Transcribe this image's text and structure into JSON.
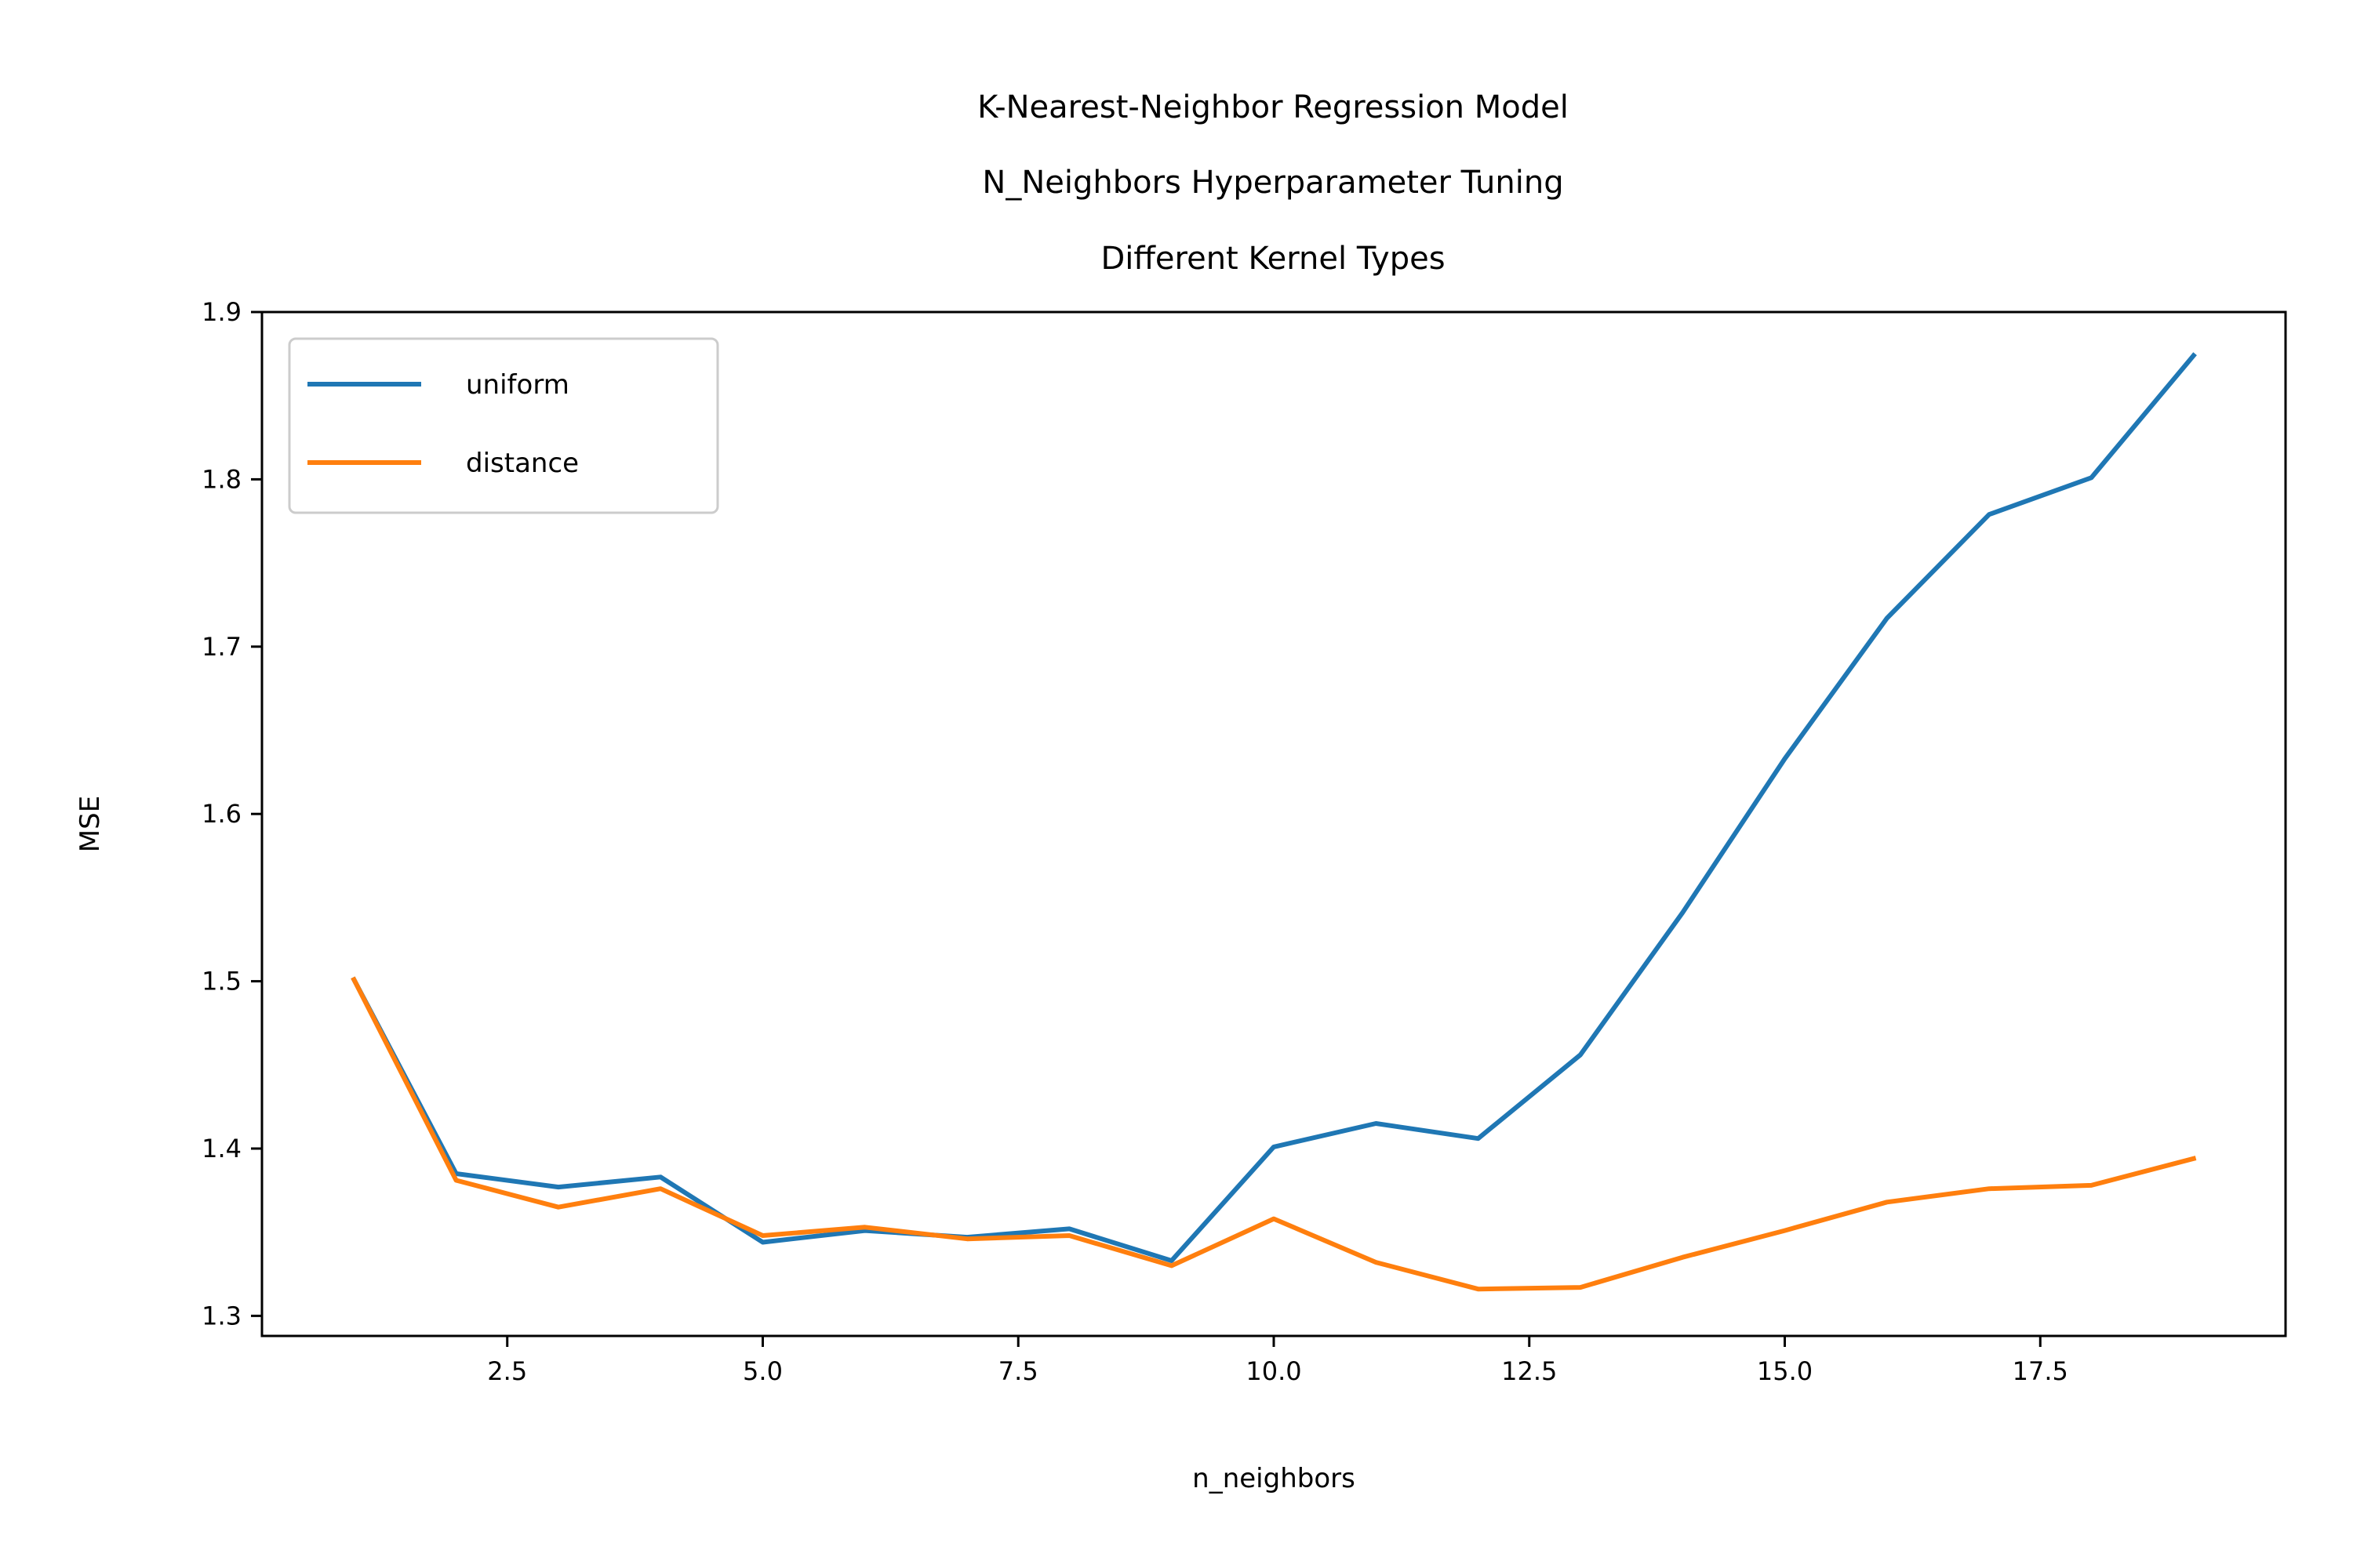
{
  "chart_data": {
    "type": "line",
    "title_lines": [
      "K-Nearest-Neighbor Regression Model",
      "N_Neighbors Hyperparameter Tuning",
      "Different Kernel Types"
    ],
    "xlabel": "n_neighbors",
    "ylabel": "MSE",
    "xlim": [
      0.1,
      19.9
    ],
    "ylim": [
      1.288,
      1.9
    ],
    "x_ticks": [
      2.5,
      5.0,
      7.5,
      10.0,
      12.5,
      15.0,
      17.5
    ],
    "x_tick_labels": [
      "2.5",
      "5.0",
      "7.5",
      "10.0",
      "12.5",
      "15.0",
      "17.5"
    ],
    "y_ticks": [
      1.3,
      1.4,
      1.5,
      1.6,
      1.7,
      1.8,
      1.9
    ],
    "y_tick_labels": [
      "1.3",
      "1.4",
      "1.5",
      "1.6",
      "1.7",
      "1.8",
      "1.9"
    ],
    "grid": false,
    "legend_position": "top-left",
    "x": [
      1,
      2,
      3,
      4,
      5,
      6,
      7,
      8,
      9,
      10,
      11,
      12,
      13,
      14,
      15,
      16,
      17,
      18,
      19
    ],
    "series": [
      {
        "name": "uniform",
        "color": "#1f77b4",
        "values": [
          1.501,
          1.385,
          1.377,
          1.383,
          1.344,
          1.351,
          1.347,
          1.352,
          1.333,
          1.401,
          1.415,
          1.406,
          1.456,
          1.541,
          1.633,
          1.717,
          1.779,
          1.801,
          1.874
        ]
      },
      {
        "name": "distance",
        "color": "#ff7f0e",
        "values": [
          1.501,
          1.381,
          1.365,
          1.376,
          1.348,
          1.353,
          1.346,
          1.348,
          1.33,
          1.358,
          1.332,
          1.316,
          1.317,
          1.335,
          1.351,
          1.368,
          1.376,
          1.378,
          1.394
        ]
      }
    ]
  }
}
